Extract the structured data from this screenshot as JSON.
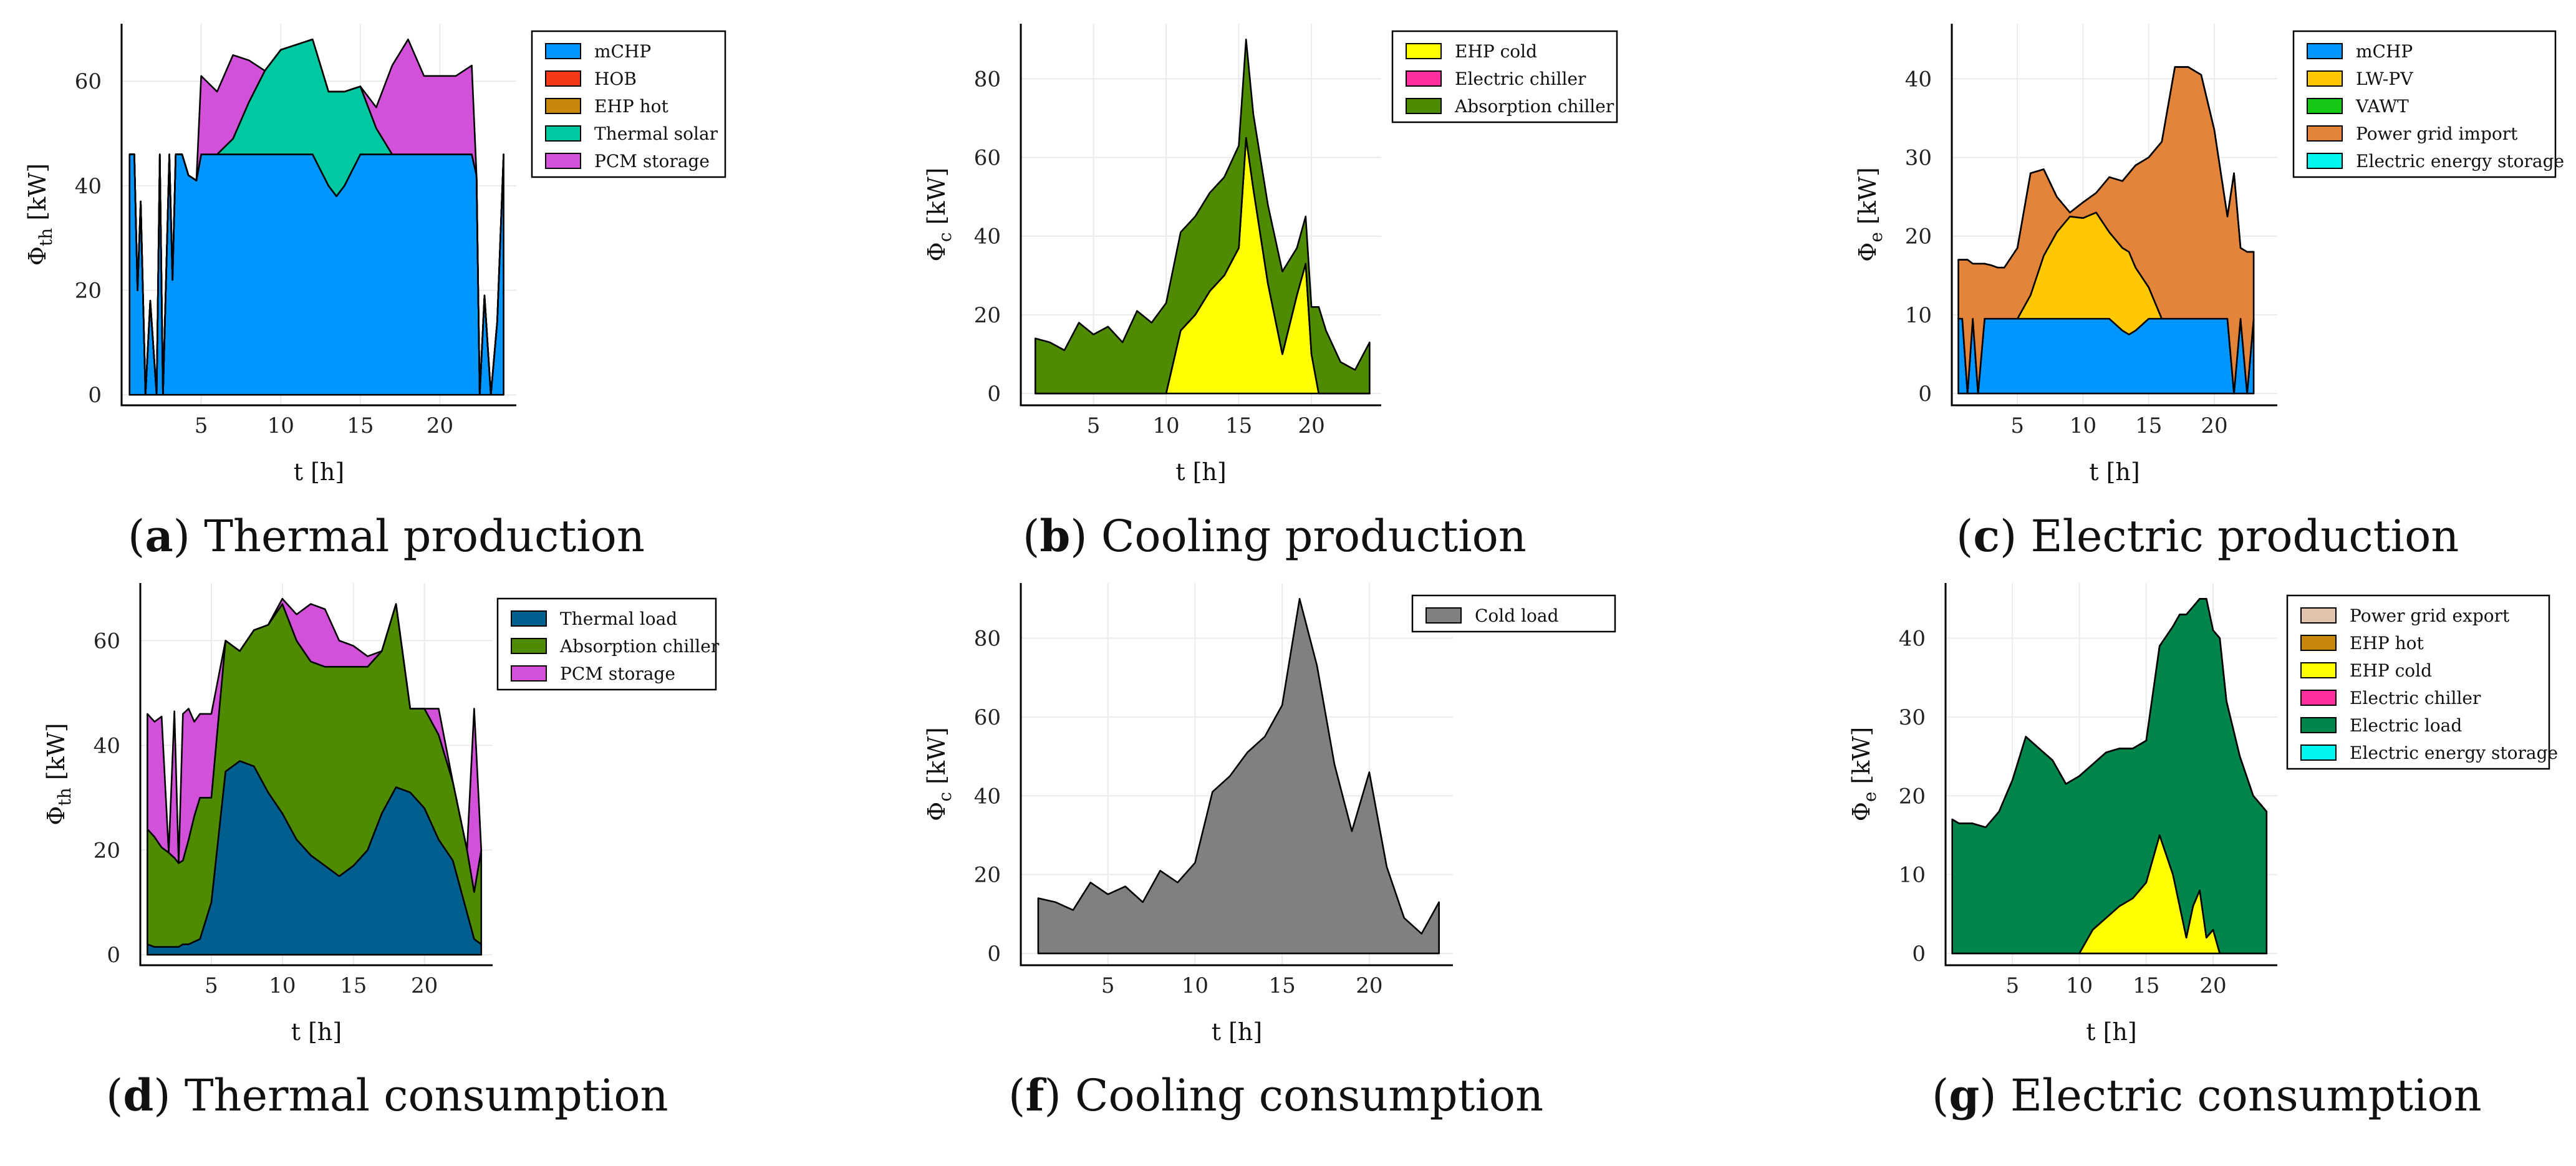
{
  "chart_data": [
    {
      "type": "area",
      "panel": "a",
      "caption_letter": "a",
      "caption_text": "Thermal production",
      "xlabel": "t [h]",
      "ylabel": "Φ_th [kW]",
      "ylabel_main": "Φ",
      "ylabel_sub": "th",
      "ylabel_unit": " [kW]",
      "xlim": [
        0,
        24.8
      ],
      "ylim": [
        -2,
        71
      ],
      "xticks": [
        5,
        10,
        15,
        20
      ],
      "yticks": [
        0,
        20,
        40,
        60
      ],
      "x": [
        0.5,
        0.8,
        1.0,
        1.2,
        1.5,
        1.8,
        2.2,
        2.4,
        2.6,
        3.0,
        3.2,
        3.4,
        3.8,
        4.2,
        4.7,
        5.0,
        6.0,
        7.0,
        8.0,
        9.0,
        10.0,
        11.0,
        12.0,
        13.0,
        13.5,
        14.0,
        15.0,
        16.0,
        17.0,
        18.0,
        19.0,
        20.0,
        21.0,
        22.0,
        22.3,
        22.5,
        22.8,
        23.2,
        23.6,
        24.0
      ],
      "series": [
        {
          "name": "mCHP",
          "color": "#0096ff",
          "values": [
            46,
            46,
            20,
            37,
            0,
            18,
            0,
            46,
            0,
            46,
            22,
            46,
            46,
            42,
            41,
            46,
            46,
            46,
            46,
            46,
            46,
            46,
            46,
            40,
            38,
            40,
            46,
            46,
            46,
            46,
            46,
            46,
            46,
            46,
            42,
            0,
            19,
            0,
            14,
            46
          ]
        },
        {
          "name": "HOB",
          "color": "#f23a16",
          "values": [
            0,
            0,
            0,
            0,
            0,
            0,
            0,
            0,
            0,
            0,
            0,
            0,
            0,
            0,
            0,
            0,
            0,
            0,
            0,
            0,
            0,
            0,
            0,
            0,
            0,
            0,
            0,
            0,
            0,
            0,
            0,
            0,
            0,
            0,
            0,
            0,
            0,
            0,
            0,
            0
          ]
        },
        {
          "name": "EHP hot",
          "color": "#c8860a",
          "values": [
            0,
            0,
            0,
            0,
            0,
            0,
            0,
            0,
            0,
            0,
            0,
            0,
            0,
            0,
            0,
            0,
            0,
            0,
            0,
            0,
            0,
            0,
            0,
            0,
            0,
            0,
            0,
            0,
            0,
            0,
            0,
            0,
            0,
            0,
            0,
            0,
            0,
            0,
            0,
            0
          ]
        },
        {
          "name": "Thermal solar",
          "color": "#00c8a0",
          "values": [
            0,
            0,
            0,
            0,
            0,
            0,
            0,
            0,
            0,
            0,
            0,
            0,
            0,
            0,
            0,
            0,
            0,
            3,
            10,
            16,
            20,
            21,
            22,
            18,
            20,
            18,
            13,
            5,
            0,
            0,
            0,
            0,
            0,
            0,
            0,
            0,
            0,
            0,
            0,
            0
          ]
        },
        {
          "name": "PCM storage",
          "color": "#d351d8",
          "values": [
            0,
            0,
            0,
            0,
            0,
            0,
            0,
            0,
            0,
            0,
            0,
            0,
            0,
            0,
            0,
            15,
            12,
            16,
            8,
            0,
            0,
            0,
            0,
            0,
            0,
            0,
            0,
            4,
            17,
            22,
            15,
            15,
            15,
            17,
            0,
            0,
            0,
            0,
            0,
            0
          ]
        }
      ]
    },
    {
      "type": "area",
      "panel": "b",
      "caption_letter": "b",
      "caption_text": "Cooling production",
      "xlabel": "t [h]",
      "ylabel": "Φ_c [kW]",
      "ylabel_main": "Φ",
      "ylabel_sub": "c",
      "ylabel_unit": " [kW]",
      "xlim": [
        0,
        24.8
      ],
      "ylim": [
        -3,
        94
      ],
      "xticks": [
        5,
        10,
        15,
        20
      ],
      "yticks": [
        0,
        20,
        40,
        60,
        80
      ],
      "x": [
        1,
        2,
        3,
        4,
        5,
        6,
        7,
        8,
        9,
        10,
        11,
        12,
        13,
        14,
        15,
        15.5,
        16,
        17,
        18,
        19,
        19.6,
        20,
        20.5,
        21,
        22,
        23,
        24
      ],
      "series": [
        {
          "name": "EHP cold",
          "color": "#ffff00",
          "values": [
            0,
            0,
            0,
            0,
            0,
            0,
            0,
            0,
            0,
            0,
            16,
            20,
            26,
            30,
            37,
            65,
            52,
            28,
            10,
            25,
            33,
            10,
            0,
            0,
            0,
            0,
            0
          ]
        },
        {
          "name": "Electric chiller",
          "color": "#ff2fa0",
          "values": [
            0,
            0,
            0,
            0,
            0,
            0,
            0,
            0,
            0,
            0,
            0,
            0,
            0,
            0,
            0,
            0,
            0,
            0,
            0,
            0,
            0,
            0,
            0,
            0,
            0,
            0,
            0
          ]
        },
        {
          "name": "Absorption chiller",
          "color": "#4f8b00",
          "values": [
            14,
            13,
            11,
            18,
            15,
            17,
            13,
            21,
            18,
            23,
            25,
            25,
            25,
            25,
            26,
            25,
            19,
            20,
            21,
            12,
            12,
            12,
            22,
            16,
            8,
            6,
            13
          ]
        }
      ]
    },
    {
      "type": "area",
      "panel": "c",
      "caption_letter": "c",
      "caption_text": "Electric production",
      "xlabel": "t [h]",
      "ylabel": "Φ_e [kW]",
      "ylabel_main": "Φ",
      "ylabel_sub": "e",
      "ylabel_unit": " [kW]",
      "xlim": [
        0,
        24.8
      ],
      "ylim": [
        -1.5,
        47
      ],
      "xticks": [
        5,
        10,
        15,
        20
      ],
      "yticks": [
        0,
        10,
        20,
        30,
        40
      ],
      "x": [
        0.5,
        0.8,
        1.2,
        1.6,
        2.0,
        2.5,
        3.0,
        3.5,
        4.0,
        5.0,
        6.0,
        7.0,
        8.0,
        9.0,
        10.0,
        11.0,
        12.0,
        13.0,
        13.5,
        14.0,
        15.0,
        16.0,
        17.0,
        18.0,
        19.0,
        20.0,
        21.0,
        21.5,
        22.0,
        22.5,
        23.0
      ],
      "series": [
        {
          "name": "mCHP",
          "color": "#0096ff",
          "values": [
            9.5,
            9.5,
            0,
            9.5,
            0,
            9.5,
            9.5,
            9.5,
            9.5,
            9.5,
            9.5,
            9.5,
            9.5,
            9.5,
            9.5,
            9.5,
            9.5,
            8.0,
            7.5,
            8.0,
            9.5,
            9.5,
            9.5,
            9.5,
            9.5,
            9.5,
            9.5,
            0,
            9.5,
            0,
            9.5
          ]
        },
        {
          "name": "LW-PV",
          "color": "#ffc800",
          "values": [
            0,
            0,
            0,
            0,
            0,
            0,
            0,
            0,
            0,
            0,
            3,
            8,
            11,
            13,
            12.8,
            13.5,
            11,
            10.5,
            10.5,
            8,
            4,
            0,
            0,
            0,
            0,
            0,
            0,
            0,
            0,
            0,
            0
          ]
        },
        {
          "name": "VAWT",
          "color": "#14c814",
          "values": [
            0,
            0,
            0,
            0,
            0,
            0,
            0,
            0,
            0,
            0,
            0,
            0,
            0,
            0,
            0,
            0,
            0,
            0,
            0,
            0,
            0,
            0,
            0,
            0,
            0,
            0,
            0,
            0,
            0,
            0,
            0
          ]
        },
        {
          "name": "Power grid import",
          "color": "#e3843a",
          "values": [
            7.5,
            7.5,
            17,
            7,
            16.5,
            7,
            6.8,
            6.5,
            6.5,
            9,
            15.5,
            11,
            4.5,
            0.5,
            2,
            2.5,
            7,
            8.5,
            10,
            13,
            16.5,
            22.5,
            32,
            32,
            31,
            24,
            13,
            28,
            9,
            18,
            8.5
          ]
        },
        {
          "name": "Electric energy storage",
          "color": "#00f5f0",
          "values": [
            0,
            0,
            0,
            0,
            0,
            0,
            0,
            0,
            0,
            0,
            0,
            0,
            0,
            0,
            0,
            0,
            0,
            0,
            0,
            0,
            0,
            0,
            0,
            0,
            0,
            0,
            0,
            0,
            0,
            0,
            0
          ]
        }
      ]
    },
    {
      "type": "area",
      "panel": "d",
      "caption_letter": "d",
      "caption_text": "Thermal consumption",
      "xlabel": "t [h]",
      "ylabel": "Φ_th [kW]",
      "ylabel_main": "Φ",
      "ylabel_sub": "th",
      "ylabel_unit": " [kW]",
      "xlim": [
        0,
        24.8
      ],
      "ylim": [
        -2,
        71
      ],
      "xticks": [
        5,
        10,
        15,
        20
      ],
      "yticks": [
        0,
        20,
        40,
        60
      ],
      "x": [
        0.5,
        1.0,
        1.5,
        2.0,
        2.4,
        2.7,
        3.0,
        3.4,
        3.8,
        4.2,
        5.0,
        6.0,
        7.0,
        8.0,
        9.0,
        10.0,
        11.0,
        12.0,
        13.0,
        14.0,
        15.0,
        16.0,
        17.0,
        18.0,
        19.0,
        20.0,
        21.0,
        22.0,
        23.0,
        23.5,
        24.0
      ],
      "series": [
        {
          "name": "Thermal load",
          "color": "#005f8e",
          "values": [
            2,
            1.5,
            1.5,
            1.5,
            1.5,
            1.5,
            2,
            2,
            2.5,
            3,
            10,
            35,
            37,
            36,
            31,
            27,
            22,
            19,
            17,
            15,
            17,
            20,
            27,
            32,
            31,
            28,
            22,
            18,
            8,
            3,
            2
          ]
        },
        {
          "name": "Absorption chiller",
          "color": "#4f8b00",
          "values": [
            22,
            21,
            19,
            18,
            17,
            16,
            16,
            20,
            24,
            27,
            20,
            25,
            21,
            26,
            32,
            40,
            38,
            37,
            38,
            40,
            38,
            35,
            31,
            35,
            16,
            19,
            20,
            15,
            12,
            9,
            18
          ]
        },
        {
          "name": "PCM storage",
          "color": "#d351d8",
          "values": [
            22,
            22,
            25,
            0,
            28,
            0,
            28,
            25,
            18,
            16,
            16,
            0,
            0,
            0,
            0,
            1,
            5,
            11,
            11,
            5,
            4,
            2,
            0,
            0,
            0,
            0,
            5,
            0,
            0,
            35,
            0
          ]
        }
      ]
    },
    {
      "type": "area",
      "panel": "f",
      "caption_letter": "f",
      "caption_text": "Cooling consumption",
      "xlabel": "t [h]",
      "ylabel": "Φ_c [kW]",
      "ylabel_main": "Φ",
      "ylabel_sub": "c",
      "ylabel_unit": " [kW]",
      "xlim": [
        0,
        24.8
      ],
      "ylim": [
        -3,
        94
      ],
      "xticks": [
        5,
        10,
        15,
        20
      ],
      "yticks": [
        0,
        20,
        40,
        60,
        80
      ],
      "x": [
        1,
        2,
        3,
        4,
        5,
        6,
        7,
        8,
        9,
        10,
        11,
        12,
        13,
        14,
        15,
        16,
        17,
        18,
        19,
        20,
        21,
        22,
        23,
        24
      ],
      "series": [
        {
          "name": "Cold load",
          "color": "#808080",
          "values": [
            14,
            13,
            11,
            18,
            15,
            17,
            13,
            21,
            18,
            23,
            41,
            45,
            51,
            55,
            63,
            90,
            73,
            48,
            31,
            46,
            22,
            9,
            5,
            13
          ]
        }
      ]
    },
    {
      "type": "area",
      "panel": "g",
      "caption_letter": "g",
      "caption_text": "Electric consumption",
      "xlabel": "t [h]",
      "ylabel": "Φ_e [kW]",
      "ylabel_main": "Φ",
      "ylabel_sub": "e",
      "ylabel_unit": " [kW]",
      "xlim": [
        0,
        24.8
      ],
      "ylim": [
        -1.5,
        47
      ],
      "xticks": [
        5,
        10,
        15,
        20
      ],
      "yticks": [
        0,
        10,
        20,
        30,
        40
      ],
      "x": [
        0.5,
        1.0,
        2.0,
        3.0,
        4.0,
        5.0,
        6.0,
        7.0,
        8.0,
        9.0,
        10.0,
        11.0,
        12.0,
        13.0,
        14.0,
        15.0,
        15.5,
        16.0,
        17.0,
        17.5,
        18.0,
        18.5,
        19.0,
        19.5,
        20.0,
        20.5,
        21.0,
        22.0,
        23.0,
        23.5,
        24.0
      ],
      "series": [
        {
          "name": "Power grid export",
          "color": "#e0c3ad",
          "values": [
            0,
            0,
            0,
            0,
            0,
            0,
            0,
            0,
            0,
            0,
            0,
            0,
            0,
            0,
            0,
            0,
            0,
            0,
            0,
            0,
            0,
            0,
            0,
            0,
            0,
            0,
            0,
            0,
            0,
            0,
            0
          ]
        },
        {
          "name": "EHP hot",
          "color": "#c8860a",
          "values": [
            0,
            0,
            0,
            0,
            0,
            0,
            0,
            0,
            0,
            0,
            0,
            0,
            0,
            0,
            0,
            0,
            0,
            0,
            0,
            0,
            0,
            0,
            0,
            0,
            0,
            0,
            0,
            0,
            0,
            0,
            0
          ]
        },
        {
          "name": "EHP cold",
          "color": "#ffff00",
          "values": [
            0,
            0,
            0,
            0,
            0,
            0,
            0,
            0,
            0,
            0,
            0,
            3,
            4.5,
            6,
            7,
            9,
            12,
            15,
            10,
            6,
            2,
            6,
            8,
            2,
            3,
            0,
            0,
            0,
            0,
            0,
            0
          ]
        },
        {
          "name": "Electric chiller",
          "color": "#ff2fa0",
          "values": [
            0,
            0,
            0,
            0,
            0,
            0,
            0,
            0,
            0,
            0,
            0,
            0,
            0,
            0,
            0,
            0,
            0,
            0,
            0,
            0,
            0,
            0,
            0,
            0,
            0,
            0,
            0,
            0,
            0,
            0,
            0
          ]
        },
        {
          "name": "Electric load",
          "color": "#00854a",
          "values": [
            17,
            16.5,
            16.5,
            16,
            18,
            22,
            27.5,
            26,
            24.5,
            21.5,
            22.5,
            21,
            21,
            20,
            19,
            18,
            21,
            24,
            31.5,
            37,
            41,
            38,
            37,
            43,
            38,
            40,
            32,
            25,
            20,
            19,
            18
          ]
        },
        {
          "name": "Electric energy storage",
          "color": "#00f5f0",
          "values": [
            0,
            0,
            0,
            0,
            0,
            0,
            0,
            0,
            0,
            0,
            0,
            0,
            0,
            0,
            0,
            0,
            0,
            0,
            0,
            0,
            0,
            0,
            0,
            0,
            0,
            0,
            0,
            0,
            0,
            0,
            0
          ]
        }
      ]
    }
  ]
}
